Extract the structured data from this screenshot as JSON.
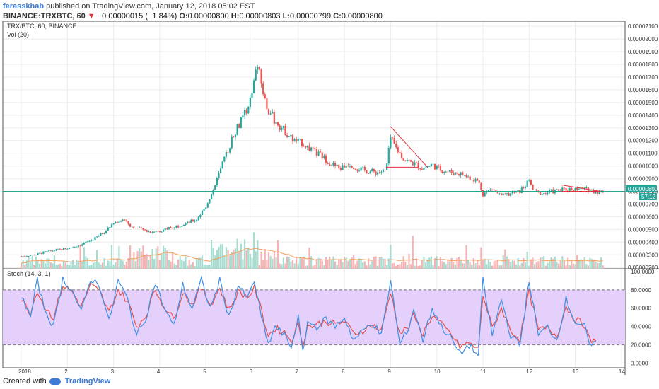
{
  "header": {
    "author": "ferasskhab",
    "published_text": " published on TradingView.com, January 12, 2018 05:02 EST",
    "symbol_line": "BINANCE:TRXBTC, 60",
    "change_arrow": "▼",
    "change_text": " −0.00000015 (−1.84%)",
    "o_label": "O:",
    "o_value": "0.00000800",
    "h_label": "H:",
    "h_value": "0.00000803",
    "l_label": "L:",
    "l_value": "0.00000799",
    "c_label": "C:",
    "c_value": "0.00000800",
    "last_value": "0.00000800"
  },
  "footer": {
    "created_with": "Created with",
    "brand": "TradingView"
  },
  "colors": {
    "up": "#26a69a",
    "down": "#ef5350",
    "vol_up": "#a7dcd0",
    "vol_down": "#f6b3b3",
    "vol_ma": "#f5a05a",
    "trend": "#e0303a",
    "last_line": "#26a69a",
    "stoch_k": "#3d8fe6",
    "stoch_d": "#e8504a",
    "stoch_band": "#e4d0fa"
  },
  "chart_data": {
    "type": "candlestick",
    "main_pane": {
      "legend_title": "TRX/BTC, 60, BINANCE",
      "volume_label": "Vol (20)",
      "y_ticks": [
        "0.00002100",
        "0.00002000",
        "0.00001900",
        "0.00001800",
        "0.00001700",
        "0.00001600",
        "0.00001500",
        "0.00001400",
        "0.00001300",
        "0.00001200",
        "0.00001100",
        "0.00001000",
        "0.00000900",
        "0.00000800",
        "0.00000700",
        "0.00000600",
        "0.00000500",
        "0.00000400",
        "0.00000300",
        "0.00000200"
      ],
      "ylim": [
        1.9e-06,
        2.14e-05
      ],
      "last_price": 8e-06,
      "last_badge": "0.00000800",
      "countdown_badge": "57:12",
      "close_path": [
        [
          0.0,
          2.9e-06
        ],
        [
          0.3,
          3e-06
        ],
        [
          0.5,
          3.2e-06
        ],
        [
          0.8,
          3.4e-06
        ],
        [
          1.0,
          3.5e-06
        ],
        [
          1.3,
          3.8e-06
        ],
        [
          1.6,
          4.3e-06
        ],
        [
          1.8,
          4.8e-06
        ],
        [
          2.0,
          5.5e-06
        ],
        [
          2.2,
          5.8e-06
        ],
        [
          2.4,
          5.2e-06
        ],
        [
          2.6,
          5e-06
        ],
        [
          2.8,
          4.8e-06
        ],
        [
          3.0,
          4.9e-06
        ],
        [
          3.2,
          5.1e-06
        ],
        [
          3.4,
          5.3e-06
        ],
        [
          3.6,
          5.5e-06
        ],
        [
          3.8,
          5.8e-06
        ],
        [
          4.0,
          6.8e-06
        ],
        [
          4.2,
          8.5e-06
        ],
        [
          4.4,
          1.05e-05
        ],
        [
          4.6,
          1.25e-05
        ],
        [
          4.8,
          1.38e-05
        ],
        [
          5.0,
          1.55e-05
        ],
        [
          5.1,
          1.82e-05
        ],
        [
          5.2,
          1.65e-05
        ],
        [
          5.3,
          1.48e-05
        ],
        [
          5.5,
          1.35e-05
        ],
        [
          5.7,
          1.28e-05
        ],
        [
          5.9,
          1.2e-05
        ],
        [
          6.1,
          1.18e-05
        ],
        [
          6.3,
          1.12e-05
        ],
        [
          6.5,
          1.08e-05
        ],
        [
          6.7,
          1.02e-05
        ],
        [
          6.9,
          9.8e-06
        ],
        [
          7.1,
          1.02e-05
        ],
        [
          7.3,
          9.8e-06
        ],
        [
          7.5,
          9.6e-06
        ],
        [
          7.7,
          9.5e-06
        ],
        [
          7.9,
          9.6e-06
        ],
        [
          8.0,
          1.22e-05
        ],
        [
          8.1,
          1.15e-05
        ],
        [
          8.3,
          1.05e-05
        ],
        [
          8.5,
          1.02e-05
        ],
        [
          8.7,
          9.8e-06
        ],
        [
          8.9,
          1.01e-05
        ],
        [
          9.1,
          9.7e-06
        ],
        [
          9.3,
          9.5e-06
        ],
        [
          9.5,
          9.4e-06
        ],
        [
          9.7,
          9.1e-06
        ],
        [
          9.9,
          8.8e-06
        ],
        [
          10.0,
          7.8e-06
        ],
        [
          10.2,
          8.2e-06
        ],
        [
          10.4,
          7.6e-06
        ],
        [
          10.6,
          7.8e-06
        ],
        [
          10.8,
          8e-06
        ],
        [
          11.0,
          8.8e-06
        ],
        [
          11.1,
          8e-06
        ],
        [
          11.3,
          7.8e-06
        ],
        [
          11.5,
          8e-06
        ],
        [
          11.7,
          8.1e-06
        ],
        [
          11.9,
          8.2e-06
        ],
        [
          12.1,
          8.2e-06
        ],
        [
          12.3,
          8.1e-06
        ],
        [
          12.5,
          7.95e-06
        ],
        [
          12.6,
          8e-06
        ]
      ],
      "trend_lines": [
        {
          "from": [
            8.0,
            1.31e-05
          ],
          "to": [
            8.8,
            9.9e-06
          ]
        },
        {
          "from": [
            7.9,
            9.9e-06
          ],
          "to": [
            8.6,
            9.9e-06
          ]
        },
        {
          "from": [
            11.7,
            8.5e-06
          ],
          "to": [
            12.55,
            8e-06
          ]
        },
        {
          "from": [
            11.7,
            8e-06
          ],
          "to": [
            12.55,
            8e-06
          ]
        }
      ]
    },
    "stoch_pane": {
      "label": "Stoch (14, 3, 1)",
      "y_ticks": [
        "100.0000",
        "80.0000",
        "60.0000",
        "40.0000",
        "20.0000",
        "0.0000"
      ],
      "ylim": [
        -5,
        103
      ],
      "bands": [
        20,
        80
      ],
      "k_path": [
        [
          0.0,
          75
        ],
        [
          0.2,
          50
        ],
        [
          0.35,
          90
        ],
        [
          0.5,
          60
        ],
        [
          0.7,
          40
        ],
        [
          0.9,
          92
        ],
        [
          1.1,
          80
        ],
        [
          1.3,
          55
        ],
        [
          1.5,
          92
        ],
        [
          1.7,
          85
        ],
        [
          1.9,
          45
        ],
        [
          2.1,
          90
        ],
        [
          2.3,
          70
        ],
        [
          2.5,
          30
        ],
        [
          2.7,
          50
        ],
        [
          2.9,
          88
        ],
        [
          3.1,
          60
        ],
        [
          3.3,
          40
        ],
        [
          3.5,
          85
        ],
        [
          3.7,
          60
        ],
        [
          3.9,
          90
        ],
        [
          4.1,
          60
        ],
        [
          4.3,
          90
        ],
        [
          4.5,
          50
        ],
        [
          4.7,
          85
        ],
        [
          4.9,
          70
        ],
        [
          5.05,
          90
        ],
        [
          5.2,
          50
        ],
        [
          5.35,
          20
        ],
        [
          5.5,
          40
        ],
        [
          5.7,
          30
        ],
        [
          5.85,
          18
        ],
        [
          6.0,
          50
        ],
        [
          6.1,
          10
        ],
        [
          6.2,
          45
        ],
        [
          6.4,
          40
        ],
        [
          6.6,
          48
        ],
        [
          6.8,
          40
        ],
        [
          7.0,
          50
        ],
        [
          7.2,
          25
        ],
        [
          7.4,
          35
        ],
        [
          7.6,
          45
        ],
        [
          7.8,
          30
        ],
        [
          8.0,
          90
        ],
        [
          8.2,
          20
        ],
        [
          8.4,
          40
        ],
        [
          8.5,
          60
        ],
        [
          8.7,
          25
        ],
        [
          8.9,
          60
        ],
        [
          9.1,
          40
        ],
        [
          9.3,
          28
        ],
        [
          9.5,
          10
        ],
        [
          9.7,
          20
        ],
        [
          9.9,
          8
        ],
        [
          10.0,
          90
        ],
        [
          10.2,
          30
        ],
        [
          10.4,
          70
        ],
        [
          10.6,
          30
        ],
        [
          10.8,
          20
        ],
        [
          11.0,
          90
        ],
        [
          11.2,
          30
        ],
        [
          11.4,
          40
        ],
        [
          11.6,
          25
        ],
        [
          11.8,
          70
        ],
        [
          12.0,
          45
        ],
        [
          12.2,
          40
        ],
        [
          12.3,
          20
        ],
        [
          12.5,
          20
        ]
      ],
      "d_path": [
        [
          0.0,
          70
        ],
        [
          0.2,
          55
        ],
        [
          0.35,
          80
        ],
        [
          0.5,
          62
        ],
        [
          0.7,
          50
        ],
        [
          0.9,
          85
        ],
        [
          1.1,
          78
        ],
        [
          1.3,
          62
        ],
        [
          1.5,
          85
        ],
        [
          1.7,
          78
        ],
        [
          1.9,
          55
        ],
        [
          2.1,
          80
        ],
        [
          2.3,
          68
        ],
        [
          2.5,
          40
        ],
        [
          2.7,
          52
        ],
        [
          2.9,
          80
        ],
        [
          3.1,
          62
        ],
        [
          3.3,
          48
        ],
        [
          3.5,
          78
        ],
        [
          3.7,
          64
        ],
        [
          3.9,
          82
        ],
        [
          4.1,
          64
        ],
        [
          4.3,
          82
        ],
        [
          4.5,
          58
        ],
        [
          4.7,
          78
        ],
        [
          4.9,
          72
        ],
        [
          5.05,
          82
        ],
        [
          5.2,
          58
        ],
        [
          5.35,
          30
        ],
        [
          5.5,
          38
        ],
        [
          5.7,
          34
        ],
        [
          5.85,
          25
        ],
        [
          6.0,
          42
        ],
        [
          6.1,
          22
        ],
        [
          6.2,
          40
        ],
        [
          6.4,
          42
        ],
        [
          6.6,
          46
        ],
        [
          6.8,
          42
        ],
        [
          7.0,
          46
        ],
        [
          7.2,
          32
        ],
        [
          7.4,
          36
        ],
        [
          7.6,
          42
        ],
        [
          7.8,
          35
        ],
        [
          8.0,
          78
        ],
        [
          8.2,
          32
        ],
        [
          8.4,
          40
        ],
        [
          8.5,
          52
        ],
        [
          8.7,
          32
        ],
        [
          8.9,
          52
        ],
        [
          9.1,
          42
        ],
        [
          9.3,
          32
        ],
        [
          9.5,
          18
        ],
        [
          9.7,
          22
        ],
        [
          9.9,
          15
        ],
        [
          10.0,
          75
        ],
        [
          10.2,
          38
        ],
        [
          10.4,
          60
        ],
        [
          10.6,
          36
        ],
        [
          10.8,
          26
        ],
        [
          11.0,
          78
        ],
        [
          11.2,
          36
        ],
        [
          11.4,
          38
        ],
        [
          11.6,
          30
        ],
        [
          11.8,
          62
        ],
        [
          12.0,
          48
        ],
        [
          12.2,
          42
        ],
        [
          12.3,
          26
        ],
        [
          12.5,
          20
        ]
      ]
    },
    "x_ticks": [
      "2018",
      "2",
      "3",
      "4",
      "5",
      "6",
      "7",
      "8",
      "9",
      "10",
      "11",
      "12",
      "13",
      "14"
    ]
  }
}
